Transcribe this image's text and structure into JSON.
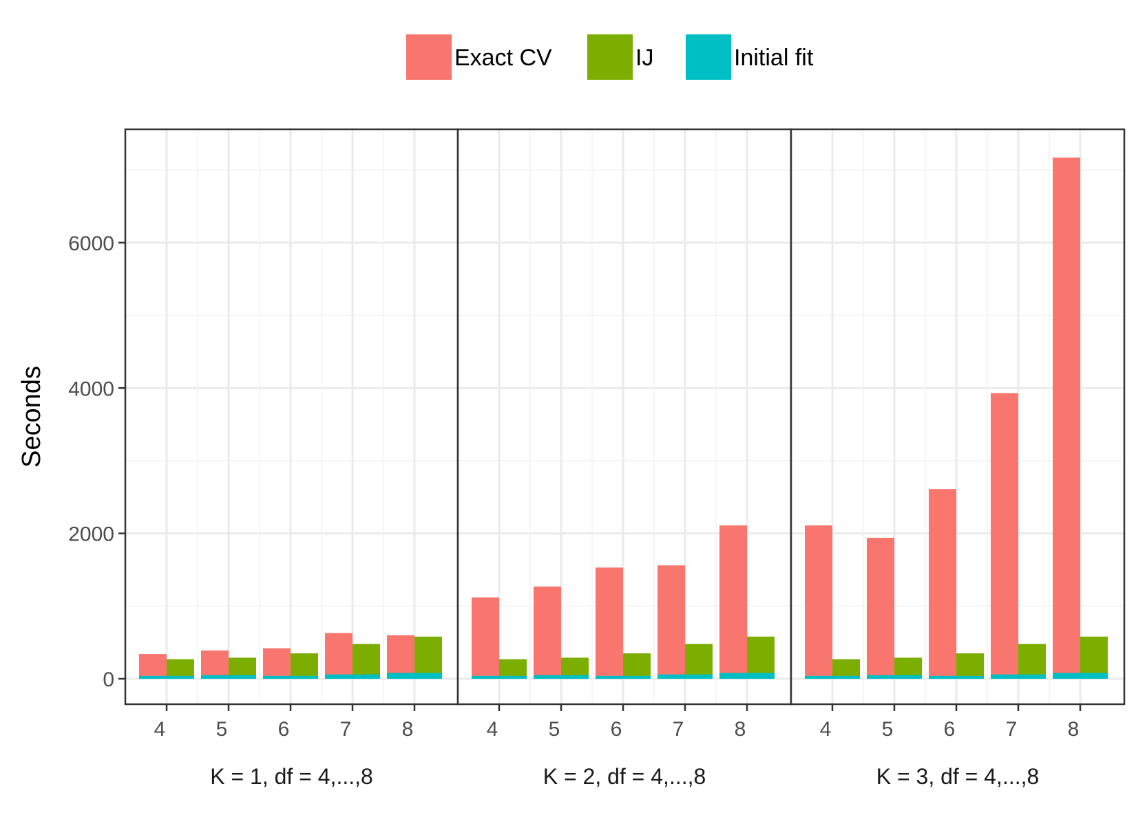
{
  "chart_data": {
    "type": "bar",
    "ylabel": "Seconds",
    "ylim": [
      -350,
      7560
    ],
    "y_ticks": [
      "0",
      "2000",
      "4000",
      "6000"
    ],
    "y_tick_values": [
      0,
      2000,
      4000,
      6000
    ],
    "categories": [
      "4",
      "5",
      "6",
      "7",
      "8"
    ],
    "grid": true,
    "legend_position": "top",
    "legend": [
      {
        "name": "Exact CV",
        "color": "#F8766D"
      },
      {
        "name": "IJ",
        "color": "#7CAE00"
      },
      {
        "name": "Initial fit",
        "color": "#00BFC4"
      }
    ],
    "panels": [
      {
        "label": "K = 1,  df = 4,...,8",
        "exact_cv": [
          340,
          390,
          420,
          630,
          600
        ],
        "ij": [
          270,
          290,
          350,
          480,
          580
        ],
        "initial_fit": [
          40,
          50,
          40,
          60,
          80
        ]
      },
      {
        "label": "K = 2,  df = 4,...,8",
        "exact_cv": [
          1120,
          1270,
          1530,
          1560,
          2110
        ],
        "ij": [
          270,
          290,
          350,
          480,
          580
        ],
        "initial_fit": [
          40,
          50,
          40,
          60,
          80
        ]
      },
      {
        "label": "K = 3,  df = 4,...,8",
        "exact_cv": [
          2110,
          1940,
          2610,
          3930,
          7170
        ],
        "ij": [
          270,
          290,
          350,
          480,
          580
        ],
        "initial_fit": [
          40,
          50,
          40,
          60,
          80
        ]
      }
    ]
  }
}
